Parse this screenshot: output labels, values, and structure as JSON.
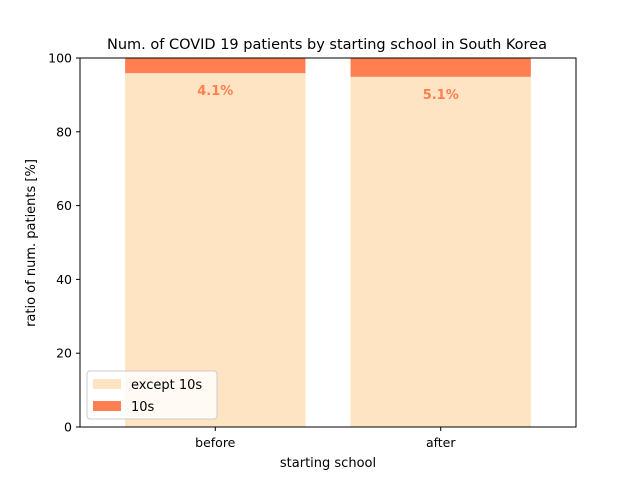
{
  "chart_data": {
    "type": "bar",
    "stacked": true,
    "title": "Num. of COVID 19 patients by starting school in South Korea",
    "xlabel": "starting school",
    "ylabel": "ratio of num. patients [%]",
    "categories": [
      "before",
      "after"
    ],
    "ylim": [
      0,
      100
    ],
    "yticks": [
      "0",
      "20",
      "40",
      "60",
      "80",
      "100"
    ],
    "series": [
      {
        "name": "except 10s",
        "values": [
          95.9,
          94.9
        ],
        "color": "#ffe4c4"
      },
      {
        "name": "10s",
        "values": [
          4.1,
          5.1
        ],
        "color": "#ff7f50"
      }
    ],
    "data_labels": [
      "4.1%",
      "5.1%"
    ],
    "data_label_color": "#ff7f50",
    "legend_position": "lower left",
    "grid": false
  }
}
